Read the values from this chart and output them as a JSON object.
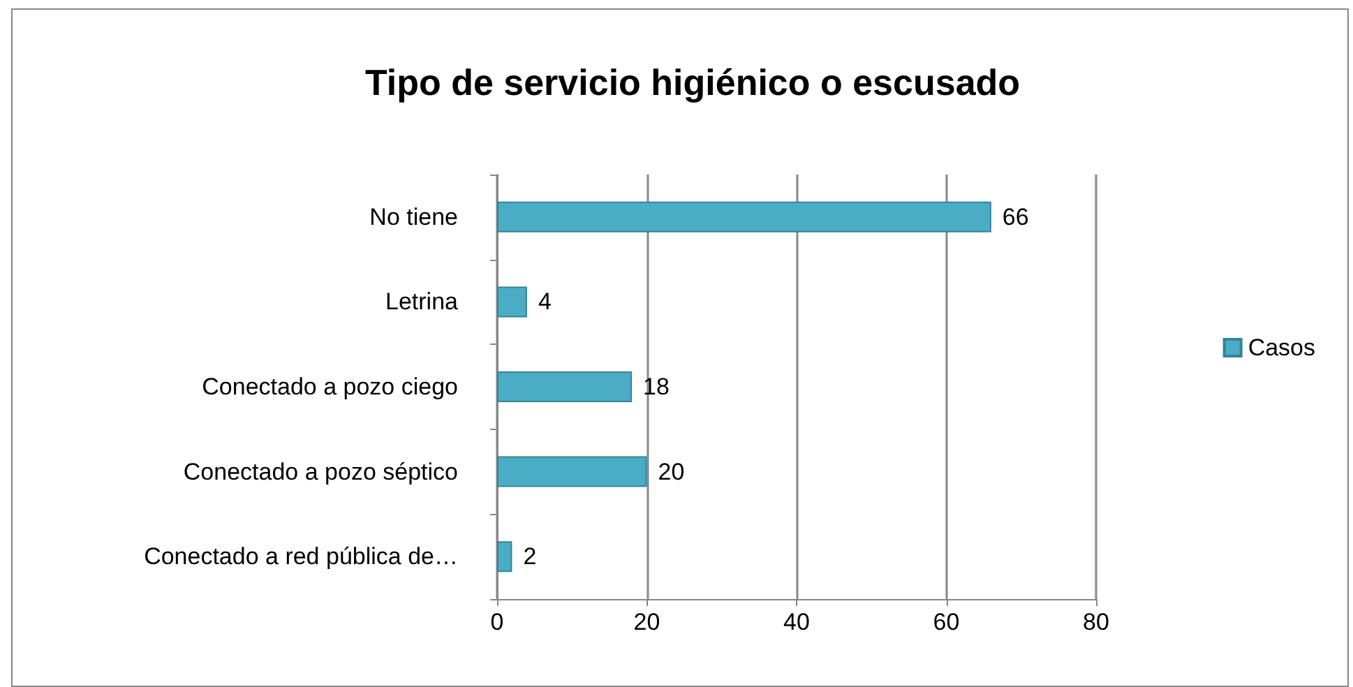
{
  "chart_data": {
    "type": "bar",
    "title": "Tipo de servicio higiénico o escusado",
    "orientation": "horizontal",
    "categories": [
      "No tiene",
      "Letrina",
      "Conectado a pozo ciego",
      "Conectado a pozo séptico",
      "Conectado a red pública de…"
    ],
    "series": [
      {
        "name": "Casos",
        "color": "#4bacc6",
        "values": [
          66,
          4,
          18,
          20,
          2
        ]
      }
    ],
    "xlim": [
      0,
      80
    ],
    "xticks": [
      0,
      20,
      40,
      60,
      80
    ],
    "grid": "x",
    "legend": "right",
    "data_labels": true
  }
}
